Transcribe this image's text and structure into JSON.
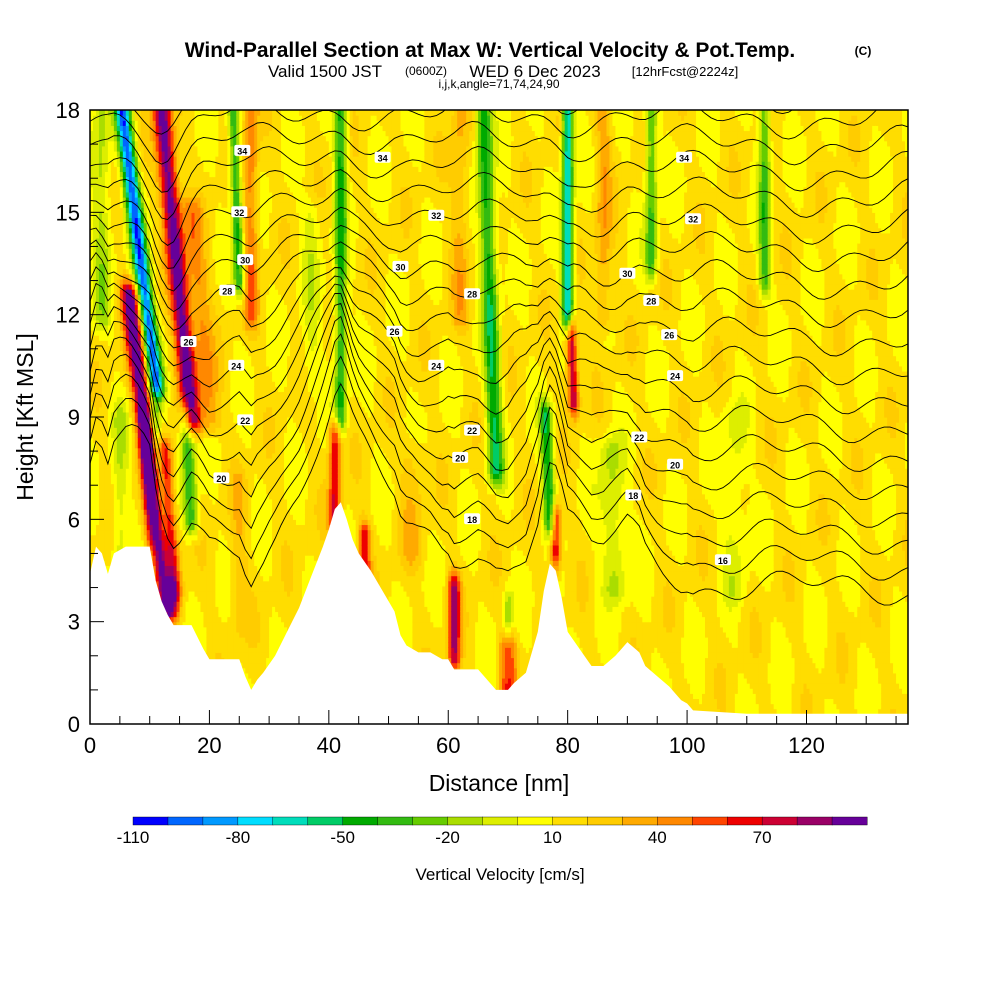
{
  "title": {
    "main": "Wind-Parallel Section at Max W: Vertical Velocity & Pot.Temp.",
    "copyright": "(C)",
    "valid_prefix": "Valid 1500 JST",
    "utc": "(0600Z)",
    "valid_date": "WED 6 Dec 2023",
    "forecast": "[12hrFcst@2224z]",
    "params": "i,j,k,angle=71,74,24,90"
  },
  "chart_data": {
    "type": "heatmap",
    "xlabel": "Distance [nm]",
    "ylabel": "Height [Kft MSL]",
    "xlim": [
      0,
      137
    ],
    "ylim": [
      0,
      18
    ],
    "x_ticks": [
      "0",
      "20",
      "40",
      "60",
      "80",
      "100",
      "120"
    ],
    "y_ticks": [
      "0",
      "3",
      "6",
      "9",
      "12",
      "15",
      "18"
    ],
    "colorbar": {
      "label": "Vertical Velocity [cm/s]",
      "tick_labels": [
        "-110",
        "-80",
        "-50",
        "-20",
        "10",
        "40",
        "70"
      ],
      "levels": [
        -110,
        -100,
        -90,
        -80,
        -70,
        -60,
        -50,
        -40,
        -30,
        -20,
        -10,
        0,
        10,
        20,
        30,
        40,
        50,
        60,
        70,
        80,
        90
      ],
      "colors": [
        "#0000ff",
        "#0066ff",
        "#0099ff",
        "#00ddff",
        "#00ddbb",
        "#00cc66",
        "#00aa00",
        "#33bb11",
        "#66cc00",
        "#aadd00",
        "#ddee00",
        "#ffff00",
        "#ffdd00",
        "#ffcc00",
        "#ffaa00",
        "#ff8800",
        "#ff4400",
        "#ee0000",
        "#cc0033",
        "#990066",
        "#660099"
      ]
    },
    "terrain": [
      [
        0,
        4.4
      ],
      [
        1,
        5.2
      ],
      [
        2,
        5.0
      ],
      [
        3,
        4.4
      ],
      [
        4,
        5.0
      ],
      [
        6,
        5.2
      ],
      [
        10,
        5.2
      ],
      [
        11,
        4.2
      ],
      [
        12,
        3.6
      ],
      [
        13,
        3.2
      ],
      [
        14,
        2.9
      ],
      [
        17,
        2.9
      ],
      [
        19,
        2.2
      ],
      [
        20,
        1.9
      ],
      [
        22,
        1.9
      ],
      [
        23,
        1.9
      ],
      [
        24,
        1.9
      ],
      [
        25,
        1.9
      ],
      [
        26,
        1.4
      ],
      [
        27,
        1.0
      ],
      [
        28,
        1.3
      ],
      [
        29,
        1.5
      ],
      [
        31,
        2.0
      ],
      [
        33,
        2.7
      ],
      [
        35,
        3.4
      ],
      [
        37,
        4.3
      ],
      [
        39,
        5.2
      ],
      [
        40,
        5.7
      ],
      [
        41,
        6.3
      ],
      [
        42,
        6.5
      ],
      [
        43,
        6.0
      ],
      [
        44,
        5.4
      ],
      [
        45,
        5.0
      ],
      [
        47,
        4.5
      ],
      [
        49,
        3.9
      ],
      [
        51,
        3.3
      ],
      [
        52,
        2.6
      ],
      [
        53,
        2.3
      ],
      [
        55,
        2.1
      ],
      [
        57,
        2.1
      ],
      [
        59,
        1.9
      ],
      [
        60,
        1.9
      ],
      [
        61,
        1.6
      ],
      [
        63,
        1.6
      ],
      [
        65,
        1.6
      ],
      [
        66,
        1.4
      ],
      [
        68,
        1.0
      ],
      [
        70,
        1.0
      ],
      [
        71,
        1.2
      ],
      [
        73,
        1.5
      ],
      [
        75,
        2.7
      ],
      [
        76,
        3.9
      ],
      [
        77,
        4.7
      ],
      [
        78,
        4.5
      ],
      [
        79,
        3.7
      ],
      [
        80,
        2.7
      ],
      [
        82,
        2.2
      ],
      [
        84,
        1.7
      ],
      [
        86,
        1.7
      ],
      [
        88,
        2.0
      ],
      [
        89,
        2.2
      ],
      [
        90,
        2.4
      ],
      [
        92,
        2.1
      ],
      [
        93,
        1.7
      ],
      [
        95,
        1.4
      ],
      [
        97,
        1.1
      ],
      [
        99,
        0.7
      ],
      [
        100,
        0.6
      ],
      [
        101,
        0.4
      ],
      [
        110,
        0.3
      ],
      [
        137,
        0.3
      ]
    ],
    "theta_contours": [
      16,
      18,
      20,
      22,
      24,
      26,
      28,
      30,
      32,
      34
    ],
    "theta_labels": [
      {
        "v": "34",
        "x": 25.5,
        "y": 16.8
      },
      {
        "v": "34",
        "x": 49,
        "y": 16.6
      },
      {
        "v": "34",
        "x": 99.5,
        "y": 16.6
      },
      {
        "v": "32",
        "x": 25,
        "y": 15.0
      },
      {
        "v": "32",
        "x": 58,
        "y": 14.9
      },
      {
        "v": "32",
        "x": 101,
        "y": 14.8
      },
      {
        "v": "30",
        "x": 26,
        "y": 13.6
      },
      {
        "v": "30",
        "x": 52,
        "y": 13.4
      },
      {
        "v": "30",
        "x": 90,
        "y": 13.2
      },
      {
        "v": "28",
        "x": 23,
        "y": 12.7
      },
      {
        "v": "28",
        "x": 64,
        "y": 12.6
      },
      {
        "v": "28",
        "x": 94,
        "y": 12.4
      },
      {
        "v": "26",
        "x": 16.5,
        "y": 11.2
      },
      {
        "v": "26",
        "x": 51,
        "y": 11.5
      },
      {
        "v": "26",
        "x": 97,
        "y": 11.4
      },
      {
        "v": "24",
        "x": 24.5,
        "y": 10.5
      },
      {
        "v": "24",
        "x": 58,
        "y": 10.5
      },
      {
        "v": "24",
        "x": 98,
        "y": 10.2
      },
      {
        "v": "22",
        "x": 26,
        "y": 8.9
      },
      {
        "v": "22",
        "x": 64,
        "y": 8.6
      },
      {
        "v": "22",
        "x": 92,
        "y": 8.4
      },
      {
        "v": "20",
        "x": 22,
        "y": 7.2
      },
      {
        "v": "20",
        "x": 62,
        "y": 7.8
      },
      {
        "v": "20",
        "x": 98,
        "y": 7.6
      },
      {
        "v": "18",
        "x": 64,
        "y": 6.0
      },
      {
        "v": "18",
        "x": 91,
        "y": 6.7
      },
      {
        "v": "16",
        "x": 106,
        "y": 4.8
      }
    ],
    "updrafts": [
      {
        "x": 13,
        "y0": 3.5,
        "y1": 12.5,
        "slant": 0.7,
        "w": 90,
        "half": 1.5
      },
      {
        "x": 17,
        "y0": 9,
        "y1": 18,
        "slant": 0.55,
        "w": 90,
        "half": 1.5
      },
      {
        "x": 14,
        "y0": 4,
        "y1": 8,
        "slant": 0.4,
        "w": 60,
        "half": 1.3
      },
      {
        "x": 20,
        "y0": 9,
        "y1": 15,
        "slant": 0.5,
        "w": 30,
        "half": 1.8
      },
      {
        "x": 41,
        "y0": 6,
        "y1": 8.5,
        "slant": 0,
        "w": 60,
        "half": 1.0
      },
      {
        "x": 46,
        "y0": 3,
        "y1": 5.5,
        "slant": 0,
        "w": 55,
        "half": 1.0
      },
      {
        "x": 61,
        "y0": 2,
        "y1": 4,
        "slant": 0,
        "w": 70,
        "half": 1.0
      },
      {
        "x": 70,
        "y0": 1.1,
        "y1": 2.2,
        "slant": 0,
        "w": 60,
        "half": 1.3
      },
      {
        "x": 78,
        "y0": 5,
        "y1": 6,
        "slant": 0,
        "w": 65,
        "half": 0.9
      },
      {
        "x": 81,
        "y0": 9.5,
        "y1": 11.5,
        "slant": 0.2,
        "w": 70,
        "half": 0.9
      },
      {
        "x": 27,
        "y0": 12,
        "y1": 18,
        "slant": 0,
        "w": 35,
        "half": 1.2
      },
      {
        "x": 62,
        "y0": 12,
        "y1": 18,
        "slant": 0,
        "w": 20,
        "half": 1.5
      },
      {
        "x": 86,
        "y0": 12,
        "y1": 18,
        "slant": 0,
        "w": 25,
        "half": 1.3
      },
      {
        "x": 10,
        "y0": 5.5,
        "y1": 9,
        "slant": 0.3,
        "w": 30,
        "half": 1.0
      },
      {
        "x": 25,
        "y0": 3,
        "y1": 7,
        "slant": 0,
        "w": 15,
        "half": 1.5
      },
      {
        "x": 54,
        "y0": 5,
        "y1": 8,
        "slant": 0,
        "w": 15,
        "half": 2.0
      }
    ],
    "downdrafts": [
      {
        "x": 11,
        "y0": 10,
        "y1": 18,
        "slant": 0.7,
        "w": -105,
        "half": 1.3
      },
      {
        "x": 13,
        "y0": 4.5,
        "y1": 9,
        "slant": 0.5,
        "w": -50,
        "half": 1.0
      },
      {
        "x": 17,
        "y0": 6,
        "y1": 9,
        "slant": 0.3,
        "w": -50,
        "half": 1.2
      },
      {
        "x": 25,
        "y0": 13,
        "y1": 18,
        "slant": 0.2,
        "w": -55,
        "half": 0.9
      },
      {
        "x": 42,
        "y0": 9,
        "y1": 18,
        "slant": 0,
        "w": -55,
        "half": 1.0
      },
      {
        "x": 68,
        "y0": 7.5,
        "y1": 18,
        "slant": 0.2,
        "w": -60,
        "half": 1.3
      },
      {
        "x": 80,
        "y0": 12,
        "y1": 18,
        "slant": 0,
        "w": -85,
        "half": 0.9
      },
      {
        "x": 77,
        "y0": 6,
        "y1": 9,
        "slant": 0.2,
        "w": -60,
        "half": 1.0
      },
      {
        "x": 94,
        "y0": 13.5,
        "y1": 18,
        "slant": 0,
        "w": -45,
        "half": 1.0
      },
      {
        "x": 113,
        "y0": 13,
        "y1": 18,
        "slant": 0,
        "w": -45,
        "half": 1.0
      },
      {
        "x": 2,
        "y0": 12,
        "y1": 18,
        "slant": 0,
        "w": -25,
        "half": 1.5
      },
      {
        "x": 5,
        "y0": 5,
        "y1": 9,
        "slant": 0,
        "w": -20,
        "half": 1.3
      },
      {
        "x": 88,
        "y0": 4,
        "y1": 8,
        "slant": 0.2,
        "w": -25,
        "half": 2.0
      },
      {
        "x": 108,
        "y0": 4,
        "y1": 9,
        "slant": 0,
        "w": -15,
        "half": 2.0
      },
      {
        "x": 70,
        "y0": 1.5,
        "y1": 3.5,
        "slant": 0,
        "w": -25,
        "half": 0.8
      },
      {
        "x": 37,
        "y0": 10,
        "y1": 15,
        "slant": 0,
        "w": -15,
        "half": 1.5
      }
    ]
  }
}
